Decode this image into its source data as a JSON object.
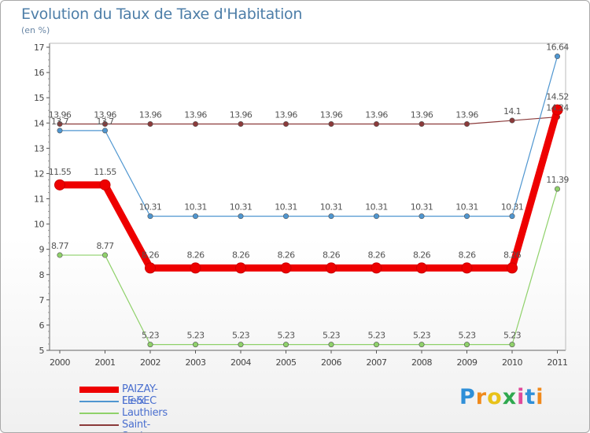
{
  "title": "Evolution du Taux de Taxe d'Habitation",
  "unit_label": "(en %)",
  "logo": {
    "text": "Proxiti",
    "letters": [
      "P",
      "r",
      "o",
      "x",
      "i",
      "t",
      "i"
    ],
    "colors": [
      "#2f8fd8",
      "#f08a1c",
      "#e8c21a",
      "#2fa84f",
      "#e04a9a",
      "#2f8fd8",
      "#f08a1c"
    ]
  },
  "chart_data": {
    "type": "line",
    "title": "Evolution du Taux de Taxe d'Habitation",
    "ylabel": "(en %)",
    "xlabel": "",
    "categories": [
      "2000",
      "2001",
      "2002",
      "2003",
      "2004",
      "2005",
      "2006",
      "2007",
      "2008",
      "2009",
      "2010",
      "2011"
    ],
    "ylim": [
      5,
      17
    ],
    "yticks": [
      "5",
      "6",
      "7",
      "8",
      "9",
      "10",
      "11",
      "12",
      "13",
      "14",
      "15",
      "16",
      "17"
    ],
    "grid": false,
    "legend": "bottom-left",
    "series": [
      {
        "name": "PAIZAY-LE-SEC",
        "color": "#ee0000",
        "thick": true,
        "values": [
          11.55,
          11.55,
          8.26,
          8.26,
          8.26,
          8.26,
          8.26,
          8.26,
          8.26,
          8.26,
          8.26,
          14.52
        ],
        "labels": [
          "11.55",
          "11.55",
          "8.26",
          "8.26",
          "8.26",
          "8.26",
          "8.26",
          "8.26",
          "8.26",
          "8.26",
          "8.26",
          "14.52"
        ]
      },
      {
        "name": "Fleix",
        "color": "#4f96d0",
        "thick": false,
        "values": [
          13.7,
          13.7,
          10.31,
          10.31,
          10.31,
          10.31,
          10.31,
          10.31,
          10.31,
          10.31,
          10.31,
          16.64
        ],
        "labels": [
          "13.7",
          "13.7",
          "10.31",
          "10.31",
          "10.31",
          "10.31",
          "10.31",
          "10.31",
          "10.31",
          "10.31",
          "10.31",
          "16.64"
        ]
      },
      {
        "name": "Lauthiers",
        "color": "#8fd16a",
        "thick": false,
        "values": [
          8.77,
          8.77,
          5.23,
          5.23,
          5.23,
          5.23,
          5.23,
          5.23,
          5.23,
          5.23,
          5.23,
          11.39
        ],
        "labels": [
          "8.77",
          "8.77",
          "5.23",
          "5.23",
          "5.23",
          "5.23",
          "5.23",
          "5.23",
          "5.23",
          "5.23",
          "5.23",
          "11.39"
        ]
      },
      {
        "name": "Saint-Savin",
        "color": "#8b3a3a",
        "thick": false,
        "values": [
          13.96,
          13.96,
          13.96,
          13.96,
          13.96,
          13.96,
          13.96,
          13.96,
          13.96,
          13.96,
          14.1,
          14.24
        ],
        "labels": [
          "13.96",
          "13.96",
          "13.96",
          "13.96",
          "13.96",
          "13.96",
          "13.96",
          "13.96",
          "13.96",
          "13.96",
          "14.1",
          "14.24"
        ]
      }
    ]
  }
}
